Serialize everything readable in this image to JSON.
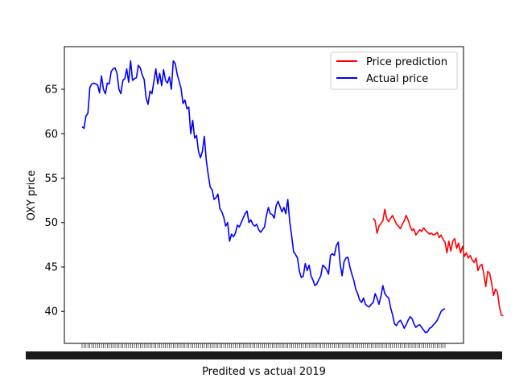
{
  "chart_data": {
    "type": "line",
    "title": "",
    "xlabel": "Predited vs actual 2019",
    "ylabel": "OXY price",
    "ylim": [
      36.4,
      69.8
    ],
    "yticks": [
      40,
      45,
      50,
      55,
      60,
      65
    ],
    "x_tick_labels_note": "dense overlapping date tick labels (unreadable)",
    "legend": {
      "position": "upper right",
      "entries": [
        "Price prediction",
        "Actual price"
      ]
    },
    "grid": false,
    "series": [
      {
        "name": "Price prediction",
        "color": "#ff0000",
        "x_start": 150,
        "values": [
          50.5,
          50.2,
          48.8,
          49.6,
          49.9,
          50.2,
          51.5,
          50.4,
          50.1,
          50.5,
          50.8,
          50.3,
          49.8,
          49.6,
          49.3,
          49.8,
          50.2,
          50.8,
          50.3,
          49.6,
          49.1,
          49.3,
          48.6,
          48.9,
          49.2,
          49.0,
          49.4,
          49.1,
          48.9,
          48.7,
          48.8,
          48.6,
          48.7,
          48.9,
          48.3,
          48.6,
          48.1,
          47.8,
          46.6,
          47.9,
          46.8,
          47.9,
          48.2,
          47.1,
          47.7,
          46.6,
          47.3,
          46.2,
          46.6,
          46.0,
          46.3,
          45.8,
          45.5,
          46.0,
          44.6,
          45.1,
          45.3,
          44.2,
          42.8,
          44.5,
          44.3,
          43.2,
          41.8,
          42.5,
          42.2,
          40.6,
          39.6,
          39.5
        ]
      },
      {
        "name": "Actual price",
        "color": "#0000ff",
        "x_start": 0,
        "values": [
          60.8,
          60.6,
          62.0,
          62.3,
          65.2,
          65.6,
          65.7,
          65.6,
          65.5,
          64.6,
          66.5,
          65.0,
          64.5,
          65.7,
          65.6,
          67.0,
          67.3,
          67.4,
          66.8,
          65.0,
          64.5,
          66.0,
          66.2,
          67.3,
          65.8,
          68.2,
          66.0,
          66.2,
          66.3,
          67.7,
          67.4,
          66.6,
          66.1,
          64.0,
          63.3,
          64.8,
          64.5,
          65.9,
          67.3,
          65.6,
          66.8,
          65.4,
          67.2,
          66.0,
          65.7,
          66.4,
          65.0,
          68.2,
          67.9,
          66.7,
          65.9,
          65.1,
          63.4,
          63.8,
          62.8,
          63.0,
          60.0,
          61.5,
          59.5,
          59.8,
          58.0,
          57.3,
          58.0,
          59.7,
          57.0,
          55.4,
          54.0,
          53.7,
          52.6,
          52.8,
          53.2,
          51.6,
          51.2,
          50.6,
          49.6,
          50.0,
          47.9,
          48.7,
          48.4,
          48.8,
          49.7,
          49.5,
          50.0,
          50.5,
          51.0,
          51.3,
          50.0,
          50.3,
          49.8,
          49.6,
          49.8,
          49.2,
          48.9,
          49.2,
          49.5,
          50.8,
          51.7,
          51.0,
          50.9,
          50.5,
          51.9,
          52.4,
          51.8,
          51.2,
          51.7,
          51.0,
          52.6,
          50.1,
          48.5,
          46.7,
          46.4,
          46.0,
          44.5,
          43.8,
          44.0,
          45.4,
          44.6,
          45.2,
          44.0,
          43.5,
          42.9,
          43.1,
          43.6,
          44.0,
          45.2,
          45.0,
          44.7,
          44.2,
          46.3,
          46.5,
          46.3,
          47.4,
          47.8,
          45.3,
          44.0,
          45.6,
          46.0,
          46.1,
          45.0,
          44.2,
          43.5,
          42.5,
          42.0,
          41.3,
          41.0,
          41.5,
          40.8,
          40.6,
          40.5,
          40.8,
          41.0,
          42.0,
          41.5,
          40.8,
          41.7,
          42.9,
          42.0,
          41.7,
          41.5,
          40.4,
          39.6,
          38.6,
          38.4,
          38.8,
          39.0,
          38.6,
          38.1,
          38.5,
          39.0,
          39.4,
          39.2,
          38.6,
          38.2,
          38.4,
          38.5,
          38.2,
          37.9,
          37.6,
          37.7,
          38.1,
          38.2,
          38.5,
          38.7,
          39.0,
          39.5,
          40.0,
          40.2,
          40.3
        ]
      }
    ]
  }
}
